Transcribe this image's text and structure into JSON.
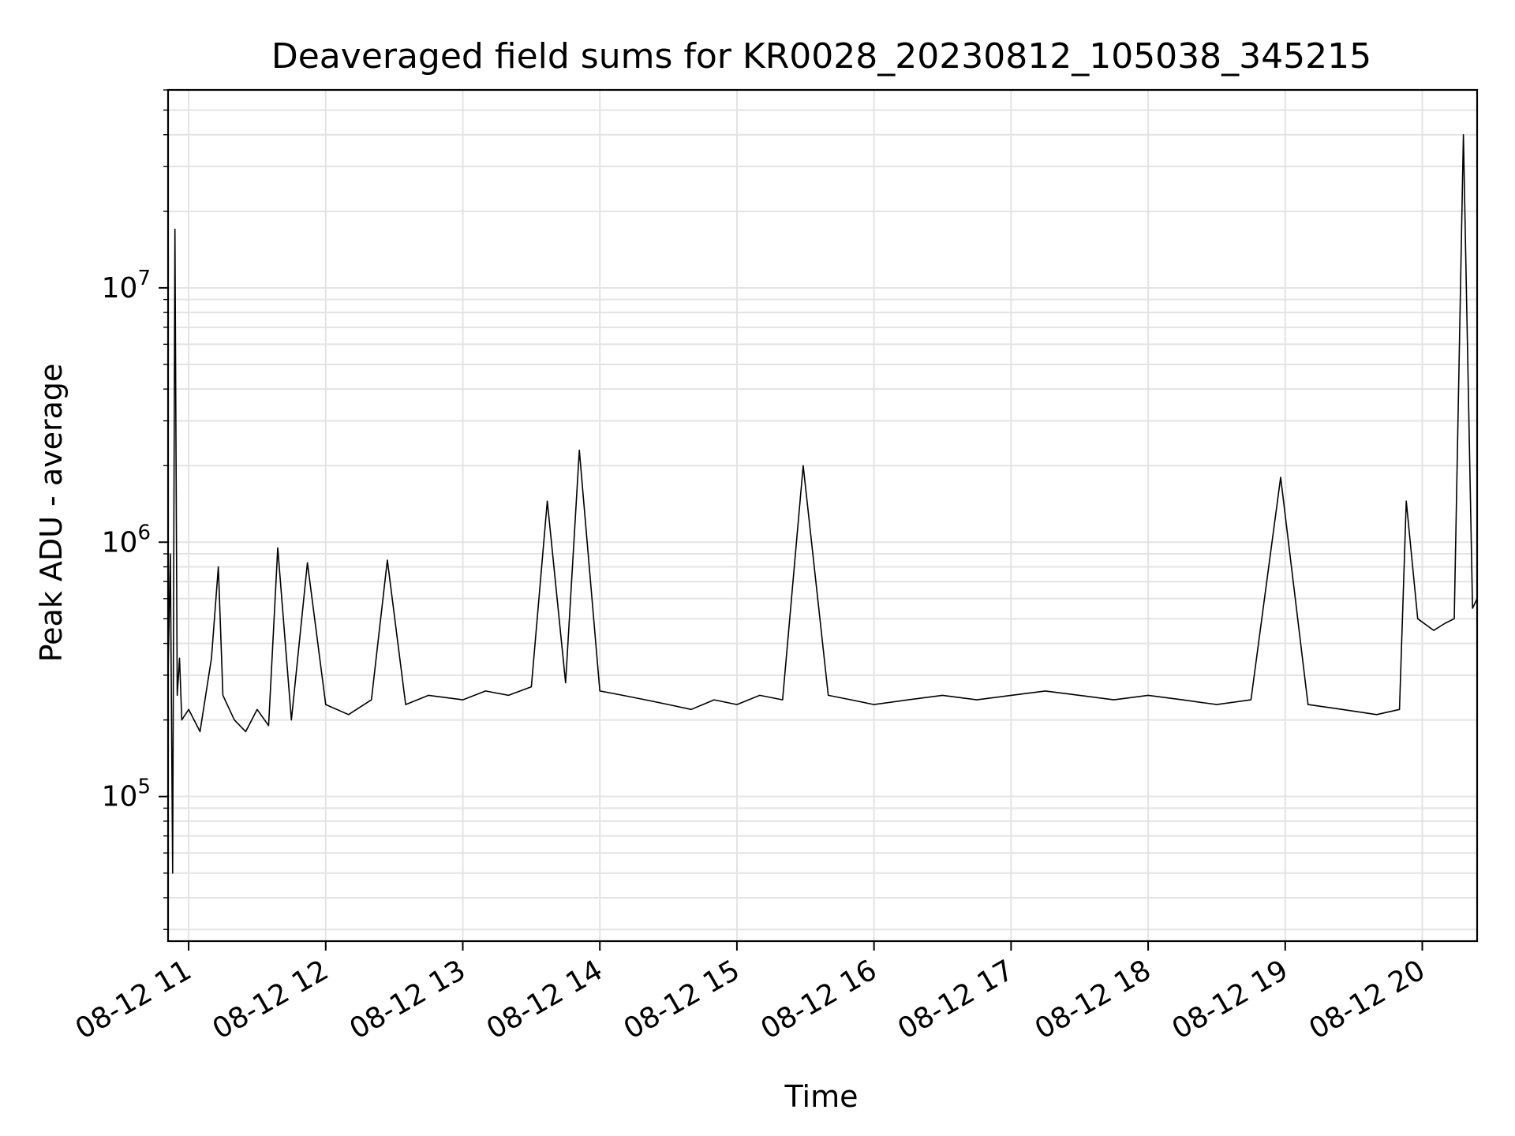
{
  "chart_data": {
    "type": "line",
    "title": "Deaveraged field sums for KR0028_20230812_105038_345215",
    "xlabel": "Time",
    "ylabel": "Peak ADU - average",
    "yscale": "log",
    "ylim": [
      27000,
      60000000
    ],
    "xlim": [
      "2023-08-12 10:51",
      "2023-08-12 20:24"
    ],
    "grid": true,
    "line_color": "#000000",
    "x_ticks": [
      {
        "value": "2023-08-12 11:00",
        "label": "08-12 11"
      },
      {
        "value": "2023-08-12 12:00",
        "label": "08-12 12"
      },
      {
        "value": "2023-08-12 13:00",
        "label": "08-12 13"
      },
      {
        "value": "2023-08-12 14:00",
        "label": "08-12 14"
      },
      {
        "value": "2023-08-12 15:00",
        "label": "08-12 15"
      },
      {
        "value": "2023-08-12 16:00",
        "label": "08-12 16"
      },
      {
        "value": "2023-08-12 17:00",
        "label": "08-12 17"
      },
      {
        "value": "2023-08-12 18:00",
        "label": "08-12 18"
      },
      {
        "value": "2023-08-12 19:00",
        "label": "08-12 19"
      },
      {
        "value": "2023-08-12 20:00",
        "label": "08-12 20"
      }
    ],
    "y_ticks": [
      {
        "value": 100000,
        "base": "10",
        "exp": "5"
      },
      {
        "value": 1000000,
        "base": "10",
        "exp": "6"
      },
      {
        "value": 10000000,
        "base": "10",
        "exp": "7"
      }
    ],
    "series": [
      {
        "x": [
          "2023-08-12 10:51",
          "2023-08-12 10:52",
          "2023-08-12 10:53",
          "2023-08-12 10:54",
          "2023-08-12 10:55",
          "2023-08-12 10:56",
          "2023-08-12 10:57",
          "2023-08-12 11:00",
          "2023-08-12 11:05",
          "2023-08-12 11:10",
          "2023-08-12 11:13",
          "2023-08-12 11:15",
          "2023-08-12 11:20",
          "2023-08-12 11:25",
          "2023-08-12 11:30",
          "2023-08-12 11:35",
          "2023-08-12 11:39",
          "2023-08-12 11:45",
          "2023-08-12 11:52",
          "2023-08-12 12:00",
          "2023-08-12 12:10",
          "2023-08-12 12:20",
          "2023-08-12 12:27",
          "2023-08-12 12:35",
          "2023-08-12 12:45",
          "2023-08-12 13:00",
          "2023-08-12 13:10",
          "2023-08-12 13:20",
          "2023-08-12 13:30",
          "2023-08-12 13:37",
          "2023-08-12 13:45",
          "2023-08-12 13:51",
          "2023-08-12 14:00",
          "2023-08-12 14:10",
          "2023-08-12 14:20",
          "2023-08-12 14:30",
          "2023-08-12 14:40",
          "2023-08-12 14:50",
          "2023-08-12 15:00",
          "2023-08-12 15:10",
          "2023-08-12 15:20",
          "2023-08-12 15:29",
          "2023-08-12 15:40",
          "2023-08-12 15:50",
          "2023-08-12 16:00",
          "2023-08-12 16:15",
          "2023-08-12 16:30",
          "2023-08-12 16:45",
          "2023-08-12 17:00",
          "2023-08-12 17:15",
          "2023-08-12 17:30",
          "2023-08-12 17:45",
          "2023-08-12 18:00",
          "2023-08-12 18:15",
          "2023-08-12 18:30",
          "2023-08-12 18:45",
          "2023-08-12 18:58",
          "2023-08-12 19:10",
          "2023-08-12 19:25",
          "2023-08-12 19:40",
          "2023-08-12 19:50",
          "2023-08-12 19:53",
          "2023-08-12 19:58",
          "2023-08-12 20:05",
          "2023-08-12 20:10",
          "2023-08-12 20:14",
          "2023-08-12 20:18",
          "2023-08-12 20:22",
          "2023-08-12 20:24"
        ],
        "y": [
          300000,
          900000,
          50000,
          17000000,
          250000,
          350000,
          200000,
          220000,
          180000,
          350000,
          800000,
          250000,
          200000,
          180000,
          220000,
          190000,
          950000,
          200000,
          830000,
          230000,
          210000,
          240000,
          850000,
          230000,
          250000,
          240000,
          260000,
          250000,
          270000,
          1450000,
          280000,
          2300000,
          260000,
          250000,
          240000,
          230000,
          220000,
          240000,
          230000,
          250000,
          240000,
          2000000,
          250000,
          240000,
          230000,
          240000,
          250000,
          240000,
          250000,
          260000,
          250000,
          240000,
          250000,
          240000,
          230000,
          240000,
          1800000,
          230000,
          220000,
          210000,
          220000,
          1450000,
          500000,
          450000,
          480000,
          500000,
          40000000,
          550000,
          600000
        ]
      }
    ]
  }
}
